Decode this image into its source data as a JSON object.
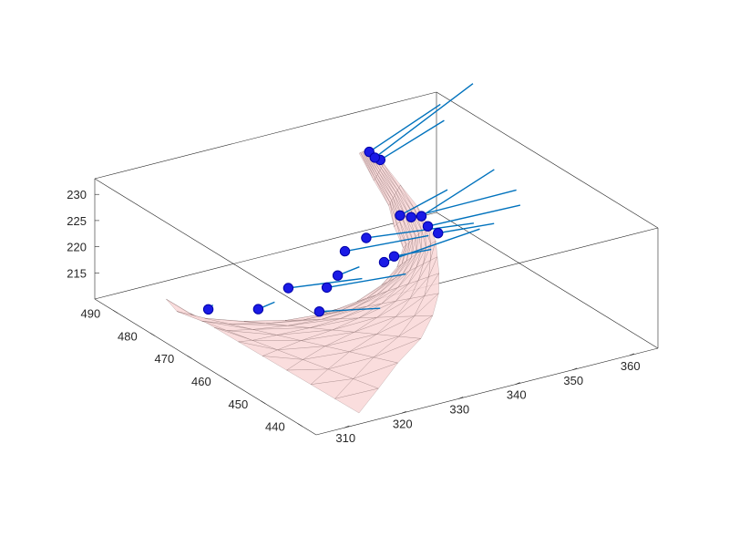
{
  "chart_data": {
    "type": "scatter",
    "plot_kind": "3d surface mesh with marked points and normal vectors",
    "title": "",
    "xlabel": "",
    "ylabel": "",
    "zlabel": "",
    "grid": false,
    "xlim": [
      305,
      365
    ],
    "ylim": [
      435,
      495
    ],
    "zlim": [
      210,
      233
    ],
    "x_ticks": [
      "310",
      "320",
      "330",
      "340",
      "350",
      "360"
    ],
    "y_ticks": [
      "440",
      "450",
      "460",
      "470",
      "480",
      "490"
    ],
    "z_ticks": [
      "215",
      "220",
      "225",
      "230"
    ],
    "colors": {
      "surface_fill": "#f9d9d9",
      "surface_edge": "#6b5050",
      "normals": "#0072bd",
      "markers": "#1a1ae6"
    },
    "points": [
      {
        "x": 343.8,
        "y": 480.5,
        "z": 233.7
      },
      {
        "x": 344.7,
        "y": 478.9,
        "z": 232.6
      },
      {
        "x": 344.9,
        "y": 480.7,
        "z": 232.2
      },
      {
        "x": 344.6,
        "y": 473.4,
        "z": 224.4
      },
      {
        "x": 346.8,
        "y": 471.0,
        "z": 224.7
      },
      {
        "x": 345.0,
        "y": 471.0,
        "z": 225.0
      },
      {
        "x": 338.6,
        "y": 473.3,
        "z": 221.8
      },
      {
        "x": 335.9,
        "y": 474.9,
        "z": 219.3
      },
      {
        "x": 346.5,
        "y": 468.8,
        "z": 223.8
      },
      {
        "x": 346.8,
        "y": 466.5,
        "z": 223.4
      },
      {
        "x": 333.6,
        "y": 473.3,
        "z": 216.0
      },
      {
        "x": 339.4,
        "y": 469.7,
        "z": 218.5
      },
      {
        "x": 341.3,
        "y": 469.9,
        "z": 219.0
      },
      {
        "x": 326.6,
        "y": 475.9,
        "z": 214.4
      },
      {
        "x": 314.7,
        "y": 479.2,
        "z": 212.2
      },
      {
        "x": 318.6,
        "y": 471.7,
        "z": 214.4
      },
      {
        "x": 325.5,
        "y": 465.8,
        "z": 214.6
      },
      {
        "x": 328.3,
        "y": 468.1,
        "z": 217.4
      }
    ],
    "normals": [
      {
        "dx": 12.1,
        "dy": -0.6,
        "dz": 6.0
      },
      {
        "dx": 11.8,
        "dy": 0.9,
        "dz": 3.9
      },
      {
        "dx": 18.4,
        "dy": 1.8,
        "dz": 8.3
      },
      {
        "dx": 9.3,
        "dy": 1.5,
        "dz": 1.7
      },
      {
        "dx": 13.5,
        "dy": 1.1,
        "dz": 4.7
      },
      {
        "dx": 17.5,
        "dy": -1.5,
        "dz": 1.0
      },
      {
        "dx": 17.2,
        "dy": -2.6,
        "dz": -0.8
      },
      {
        "dx": 14.1,
        "dy": -0.9,
        "dz": -0.5
      },
      {
        "dx": 14.8,
        "dy": -2.2,
        "dz": 0.9
      },
      {
        "dx": 9.0,
        "dy": -1.3,
        "dz": -0.1
      },
      {
        "dx": 3.8,
        "dy": 0.0,
        "dz": 0.6
      },
      {
        "dx": 16.8,
        "dy": 0.0,
        "dz": 1.7
      },
      {
        "dx": 5.8,
        "dy": -1.1,
        "dz": 0.2
      },
      {
        "dx": 10.9,
        "dy": -3.2,
        "dz": 0.2
      },
      {
        "dx": 0.8,
        "dy": 0.0,
        "dz": 0.6
      },
      {
        "dx": 2.3,
        "dy": -0.9,
        "dz": 1.1
      },
      {
        "dx": 8.1,
        "dy": -4.0,
        "dz": 0.1
      },
      {
        "dx": 13.1,
        "dy": -1.2,
        "dz": -0.5
      }
    ]
  }
}
